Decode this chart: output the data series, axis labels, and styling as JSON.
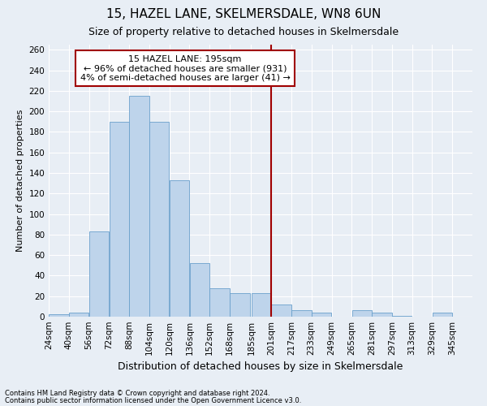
{
  "title": "15, HAZEL LANE, SKELMERSDALE, WN8 6UN",
  "subtitle": "Size of property relative to detached houses in Skelmersdale",
  "xlabel": "Distribution of detached houses by size in Skelmersdale",
  "ylabel": "Number of detached properties",
  "footnote1": "Contains HM Land Registry data © Crown copyright and database right 2024.",
  "footnote2": "Contains public sector information licensed under the Open Government Licence v3.0.",
  "annotation_line1": "15 HAZEL LANE: 195sqm",
  "annotation_line2": "← 96% of detached houses are smaller (931)",
  "annotation_line3": "4% of semi-detached houses are larger (41) →",
  "bar_labels": [
    "24sqm",
    "40sqm",
    "56sqm",
    "72sqm",
    "88sqm",
    "104sqm",
    "120sqm",
    "136sqm",
    "152sqm",
    "168sqm",
    "185sqm",
    "201sqm",
    "217sqm",
    "233sqm",
    "249sqm",
    "265sqm",
    "281sqm",
    "297sqm",
    "313sqm",
    "329sqm",
    "345sqm"
  ],
  "bar_values": [
    2,
    4,
    83,
    190,
    215,
    190,
    133,
    52,
    28,
    23,
    23,
    12,
    6,
    4,
    0,
    6,
    4,
    1,
    0,
    4,
    0
  ],
  "bar_color": "#bed4eb",
  "bar_edge_color": "#6aa0cc",
  "vline_x_index": 11,
  "vline_color": "#a00000",
  "annotation_box_color": "#a00000",
  "ylim": [
    0,
    265
  ],
  "yticks": [
    0,
    20,
    40,
    60,
    80,
    100,
    120,
    140,
    160,
    180,
    200,
    220,
    240,
    260
  ],
  "background_color": "#e8eef5",
  "plot_background_color": "#e8eef5",
  "grid_color": "#ffffff",
  "title_fontsize": 11,
  "subtitle_fontsize": 9,
  "ylabel_fontsize": 8,
  "xlabel_fontsize": 9,
  "annotation_fontsize": 8,
  "tick_fontsize": 7.5,
  "footnote_fontsize": 6
}
